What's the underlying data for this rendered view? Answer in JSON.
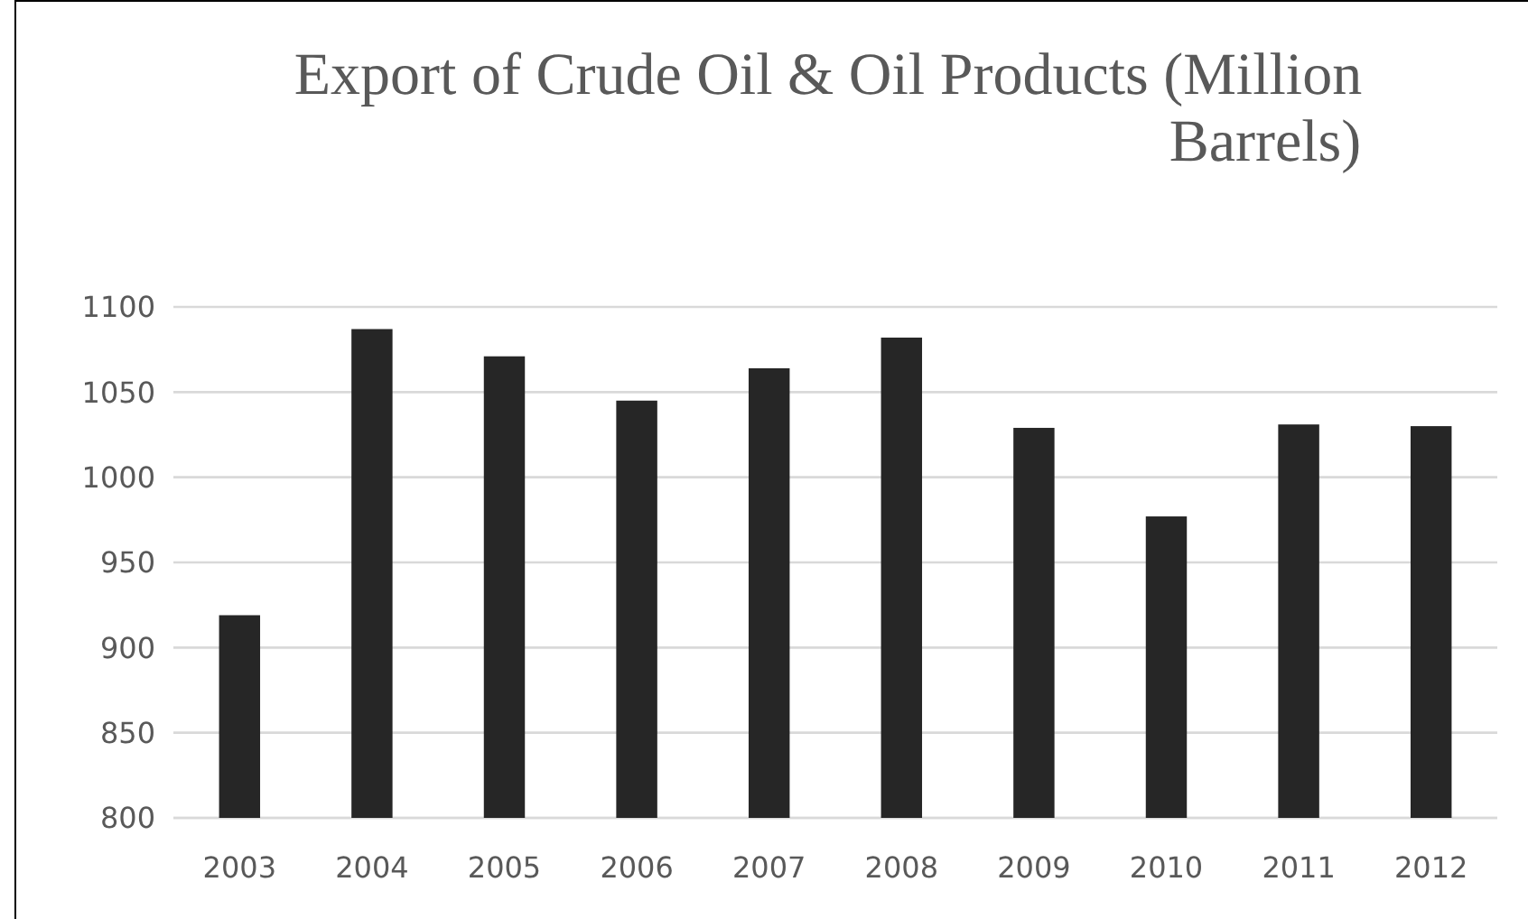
{
  "chart_data": {
    "type": "bar",
    "title": "Export of Crude Oil & Oil Products (Million Barrels)",
    "categories": [
      "2003",
      "2004",
      "2005",
      "2006",
      "2007",
      "2008",
      "2009",
      "2010",
      "2011",
      "2012"
    ],
    "values": [
      919,
      1087,
      1071,
      1045,
      1064,
      1082,
      1029,
      977,
      1031,
      1030
    ],
    "color": "#262626",
    "ylim": [
      800,
      1100
    ],
    "yticks": [
      800,
      850,
      900,
      950,
      1000,
      1050,
      1100
    ],
    "grid": "y"
  }
}
